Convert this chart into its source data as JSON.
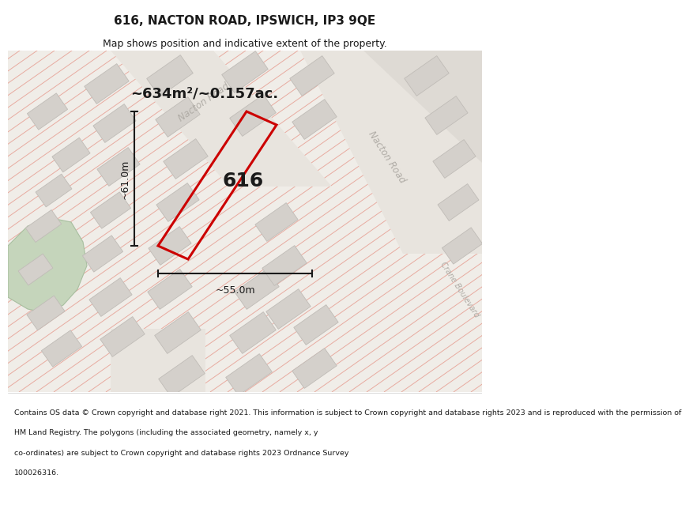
{
  "title": "616, NACTON ROAD, IPSWICH, IP3 9QE",
  "subtitle": "Map shows position and indicative extent of the property.",
  "footer_lines": [
    "Contains OS data © Crown copyright and database right 2021. This information is subject to Crown copyright and database rights 2023 and is reproduced with the permission of",
    "HM Land Registry. The polygons (including the associated geometry, namely x, y co-ordinates) are subject to Crown copyright and database rights 2023 Ordnance Survey",
    "100026316."
  ],
  "area_label": "~634m²/~0.157ac.",
  "property_label": "616",
  "dim_vertical": "~61.0m",
  "dim_horizontal": "~55.0m",
  "bg_color": "#f0ede8",
  "hatch_line_color": "#e8aba0",
  "road_color": "#e8e4de",
  "building_color": "#d4d0cb",
  "building_edge": "#c0bcb7",
  "property_color": "#cc0000",
  "green_color": "#c5d5bb",
  "green_edge": "#a8bfa0",
  "dim_color": "#1a1a1a",
  "text_color": "#1a1a1a",
  "road_text_color": "#b0aca6",
  "title_fontsize": 11,
  "subtitle_fontsize": 9,
  "area_fontsize": 13,
  "prop_fontsize": 18,
  "dim_fontsize": 9,
  "road_fontsize": 8.5,
  "footer_fontsize": 6.8
}
